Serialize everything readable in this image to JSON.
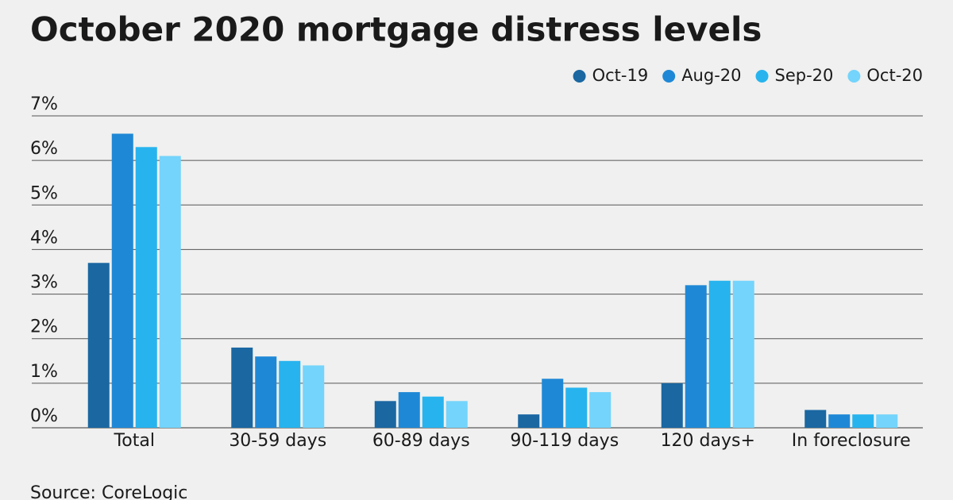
{
  "chart_data": {
    "type": "bar",
    "title": "October 2020 mortgage distress levels",
    "source": "Source: CoreLogic",
    "categories": [
      "Total",
      "30-59 days",
      "60-89 days",
      "90-119 days",
      "120 days+",
      "In foreclosure"
    ],
    "series": [
      {
        "name": "Oct-19",
        "color": "#1a67a2",
        "values": [
          3.7,
          1.8,
          0.6,
          0.3,
          1.0,
          0.4
        ]
      },
      {
        "name": "Aug-20",
        "color": "#1f88d6",
        "values": [
          6.6,
          1.6,
          0.8,
          1.1,
          3.2,
          0.3
        ]
      },
      {
        "name": "Sep-20",
        "color": "#27b4ee",
        "values": [
          6.3,
          1.5,
          0.7,
          0.9,
          3.3,
          0.3
        ]
      },
      {
        "name": "Oct-20",
        "color": "#74d4fb",
        "values": [
          6.1,
          1.4,
          0.6,
          0.8,
          3.3,
          0.3
        ]
      }
    ],
    "ylim": [
      0,
      7
    ],
    "yticks": [
      {
        "value": 0,
        "label": "0%"
      },
      {
        "value": 1,
        "label": "1%"
      },
      {
        "value": 2,
        "label": "2%"
      },
      {
        "value": 3,
        "label": "3%"
      },
      {
        "value": 4,
        "label": "4%"
      },
      {
        "value": 5,
        "label": "5%"
      },
      {
        "value": 6,
        "label": "6%"
      },
      {
        "value": 7,
        "label": "7%"
      }
    ],
    "grid": true,
    "legend": "top-right"
  }
}
